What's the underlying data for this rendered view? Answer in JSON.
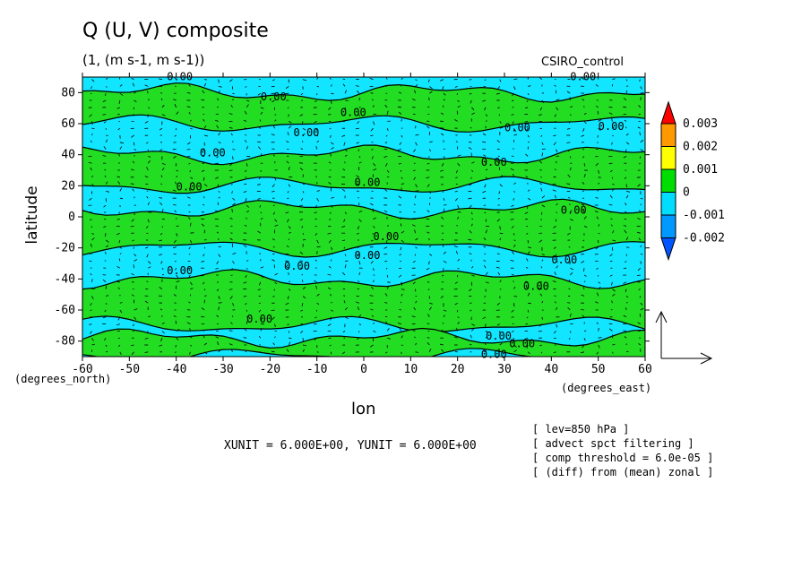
{
  "chart_data": {
    "type": "heatmap",
    "title": "Q (U, V) composite",
    "subtitle": "(1, (m s-1, m s-1))",
    "dataset": "CSIRO_control",
    "xlabel": "lon",
    "ylabel": "latitude",
    "x_unit": "(degrees_east)",
    "y_unit": "(degrees_north)",
    "xlim": [
      -60,
      60
    ],
    "ylim": [
      -90,
      90
    ],
    "x_ticks": [
      -60,
      -50,
      -40,
      -30,
      -20,
      -10,
      0,
      10,
      20,
      30,
      40,
      50,
      60
    ],
    "x_tick_labels": [
      "-60",
      "-50",
      "-40",
      "-30",
      "-20",
      "-10",
      "0",
      "10",
      "20",
      "30",
      "40",
      "50",
      "60"
    ],
    "y_ticks": [
      80,
      60,
      40,
      20,
      0,
      -20,
      -40,
      -60,
      -80
    ],
    "y_tick_labels": [
      "80",
      "60",
      "40",
      "20",
      "0",
      "-20",
      "-40",
      "-60",
      "-80"
    ],
    "colorbar": {
      "levels": [
        "0.003",
        "0.002",
        "0.001",
        "0",
        "-0.001",
        "-0.002"
      ],
      "colors": [
        "#ff0000",
        "#ff9900",
        "#ffff00",
        "#00dd00",
        "#00ddff",
        "#0099ff",
        "#0055ff"
      ]
    },
    "field_colors": {
      "positive": "#22dd22",
      "negative": "#11e5ff"
    },
    "positive_bands": [
      {
        "lat_south": 60,
        "lat_north": 80,
        "note": "green bands across most longitudes"
      },
      {
        "lat_south": 20,
        "lat_north": 40
      },
      {
        "lat_south": -20,
        "lat_north": 5
      },
      {
        "lat_south": -70,
        "lat_north": -40
      },
      {
        "lat_south": -90,
        "lat_north": -78
      }
    ],
    "contour_labels": [
      {
        "lon": -42,
        "lat": 88,
        "text": "0.00"
      },
      {
        "lon": -22,
        "lat": 75,
        "text": "0.00"
      },
      {
        "lon": -5,
        "lat": 65,
        "text": "0.00"
      },
      {
        "lon": -15,
        "lat": 52,
        "text": "0.00"
      },
      {
        "lon": -35,
        "lat": 39,
        "text": "0.00"
      },
      {
        "lon": -40,
        "lat": 17,
        "text": "0.00"
      },
      {
        "lon": -2,
        "lat": 20,
        "text": "0.00"
      },
      {
        "lon": 25,
        "lat": 33,
        "text": "0.00"
      },
      {
        "lon": 30,
        "lat": 55,
        "text": "0.00"
      },
      {
        "lon": 50,
        "lat": 56,
        "text": "0.00"
      },
      {
        "lon": 44,
        "lat": 88,
        "text": "0.00"
      },
      {
        "lon": 42,
        "lat": 2,
        "text": "0.00"
      },
      {
        "lon": 2,
        "lat": -15,
        "text": "0.00"
      },
      {
        "lon": -2,
        "lat": -27,
        "text": "0.00"
      },
      {
        "lon": -17,
        "lat": -34,
        "text": "0.00"
      },
      {
        "lon": -42,
        "lat": -37,
        "text": "0.00"
      },
      {
        "lon": 40,
        "lat": -30,
        "text": "0.00"
      },
      {
        "lon": 34,
        "lat": -47,
        "text": "0.00"
      },
      {
        "lon": -25,
        "lat": -68,
        "text": "0.00"
      },
      {
        "lon": 26,
        "lat": -79,
        "text": "0.00"
      },
      {
        "lon": 31,
        "lat": -84,
        "text": "0.00"
      },
      {
        "lon": 25,
        "lat": -91,
        "text": "0.00"
      }
    ],
    "vector_unit_text": "XUNIT = 6.000E+00, YUNIT = 6.000E+00",
    "notes": [
      "[ lev=850 hPa ]",
      "[ advect spct filtering ]",
      "[ comp threshold = 6.0e-05 ]",
      "[ (diff) from (mean) zonal ]"
    ]
  }
}
